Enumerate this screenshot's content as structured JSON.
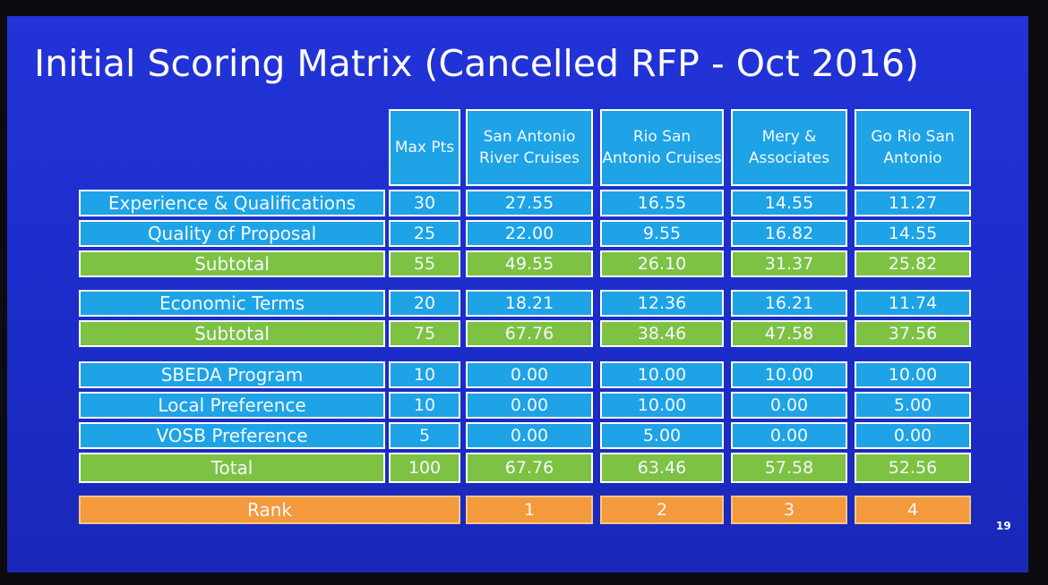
{
  "title": "Initial Scoring Matrix (Cancelled RFP - Oct 2016)",
  "page_number": "19",
  "header": {
    "max": "Max Pts",
    "vendors": [
      "San Antonio River Cruises",
      "Rio San Antonio Cruises",
      "Mery & Associates",
      "Go Rio San Antonio"
    ]
  },
  "colors": {
    "slide_bg": "#1f2fd0",
    "cell_blue": "#1da3e6",
    "cell_green": "#7dc242",
    "cell_orange": "#f39a3c"
  },
  "rows": [
    {
      "label": "Experience & Qualifications",
      "type": "blue",
      "max": "30",
      "values": [
        "27.55",
        "16.55",
        "14.55",
        "11.27"
      ]
    },
    {
      "label": "Quality of Proposal",
      "type": "blue",
      "max": "25",
      "values": [
        "22.00",
        "9.55",
        "16.82",
        "14.55"
      ]
    },
    {
      "label": "Subtotal",
      "type": "green",
      "max": "55",
      "values": [
        "49.55",
        "26.10",
        "31.37",
        "25.82"
      ]
    },
    {
      "label": "Economic Terms",
      "type": "blue",
      "max": "20",
      "values": [
        "18.21",
        "12.36",
        "16.21",
        "11.74"
      ]
    },
    {
      "label": "Subtotal",
      "type": "green",
      "max": "75",
      "values": [
        "67.76",
        "38.46",
        "47.58",
        "37.56"
      ]
    },
    {
      "label": "SBEDA Program",
      "type": "blue",
      "max": "10",
      "values": [
        "0.00",
        "10.00",
        "10.00",
        "10.00"
      ]
    },
    {
      "label": "Local Preference",
      "type": "blue",
      "max": "10",
      "values": [
        "0.00",
        "10.00",
        "0.00",
        "5.00"
      ]
    },
    {
      "label": "VOSB Preference",
      "type": "blue",
      "max": "5",
      "values": [
        "0.00",
        "5.00",
        "0.00",
        "0.00"
      ]
    },
    {
      "label": "Total",
      "type": "green",
      "max": "100",
      "values": [
        "67.76",
        "63.46",
        "57.58",
        "52.56"
      ]
    }
  ],
  "rank": {
    "label": "Rank",
    "values": [
      "1",
      "2",
      "3",
      "4"
    ]
  }
}
